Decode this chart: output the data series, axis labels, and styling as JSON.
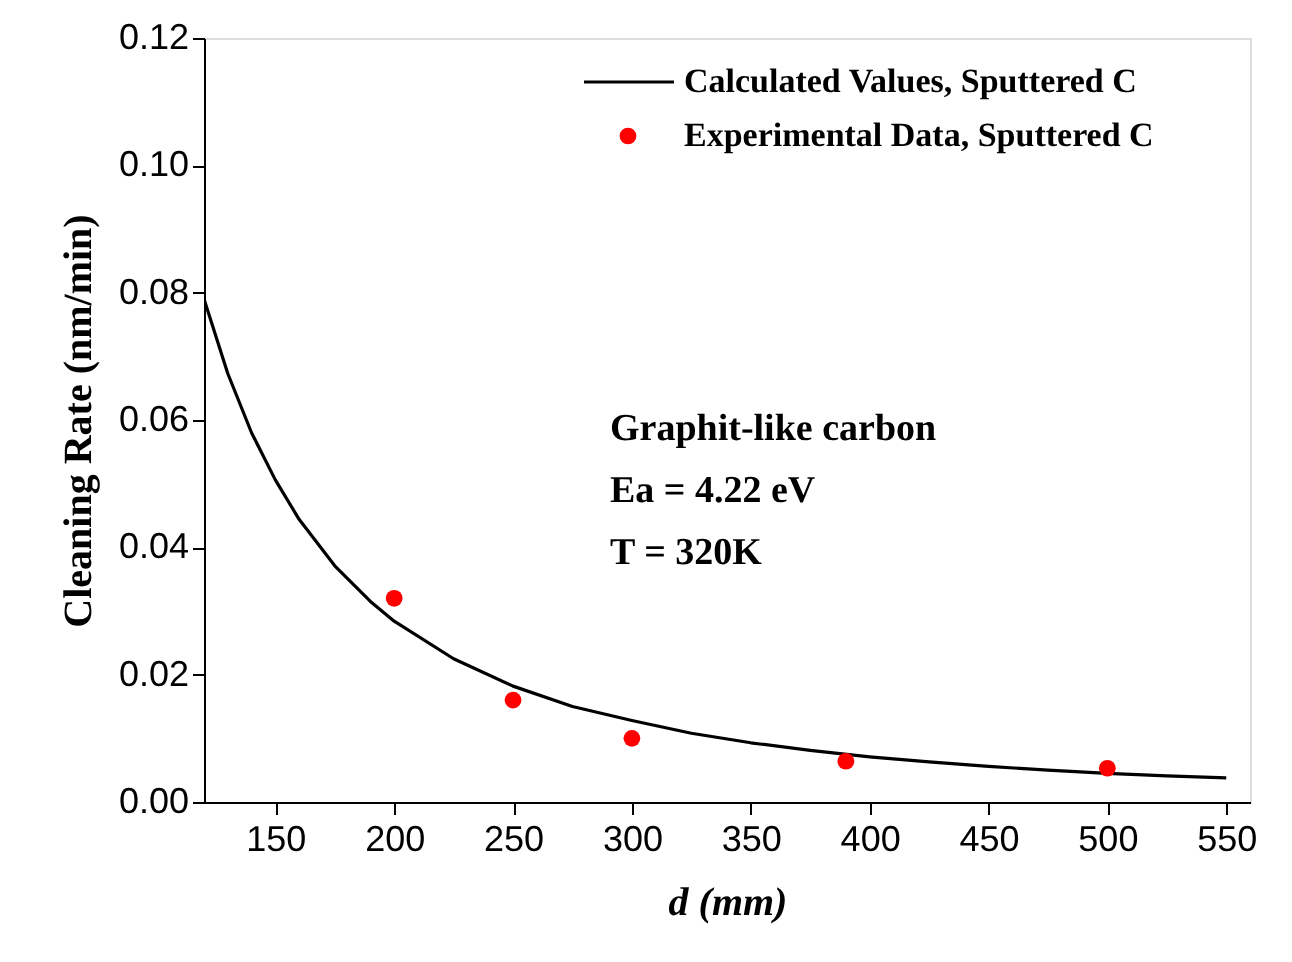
{
  "chart_data": {
    "type": "line",
    "xlabel": "d (mm)",
    "ylabel": "Cleaning Rate (nm/min)",
    "xlim": [
      120,
      560
    ],
    "xticks": [
      150,
      200,
      250,
      300,
      350,
      400,
      450,
      500,
      550
    ],
    "ylim": [
      0,
      0.12
    ],
    "yticks": [
      {
        "value": 0,
        "label": "0.00"
      },
      {
        "value": 0.02,
        "label": "0.02"
      },
      {
        "value": 0.04,
        "label": "0.04"
      },
      {
        "value": 0.06,
        "label": "0.06"
      },
      {
        "value": 0.08,
        "label": "0.08"
      },
      {
        "value": 0.1,
        "label": "0.10"
      },
      {
        "value": 0.12,
        "label": "0.12"
      }
    ],
    "grid": false,
    "legend": "top right",
    "annotations": [
      "Graphit-like carbon",
      "Ea = 4.22 eV",
      "T = 320K"
    ],
    "series": [
      {
        "name": "Calculated Values, Sputtered C",
        "color": "#000000",
        "marker": "none",
        "line_style": "solid",
        "x": [
          120,
          130,
          140,
          150,
          160,
          175,
          190,
          200,
          225,
          250,
          275,
          300,
          325,
          350,
          375,
          400,
          425,
          450,
          475,
          500,
          525,
          550
        ],
        "values": [
          0.079,
          0.0673,
          0.058,
          0.0506,
          0.0444,
          0.0371,
          0.0315,
          0.0284,
          0.0225,
          0.0182,
          0.015,
          0.0128,
          0.0108,
          0.0093,
          0.0081,
          0.0071,
          0.0063,
          0.0056,
          0.005,
          0.0045,
          0.0041,
          0.0038
        ]
      },
      {
        "name": "Experimental Data, Sputtered C",
        "type": "scatter",
        "color": "#ff0000",
        "marker": "circle",
        "x": [
          200,
          250,
          300,
          390,
          500
        ],
        "values": [
          0.032,
          0.016,
          0.01,
          0.0064,
          0.0053
        ]
      }
    ]
  }
}
